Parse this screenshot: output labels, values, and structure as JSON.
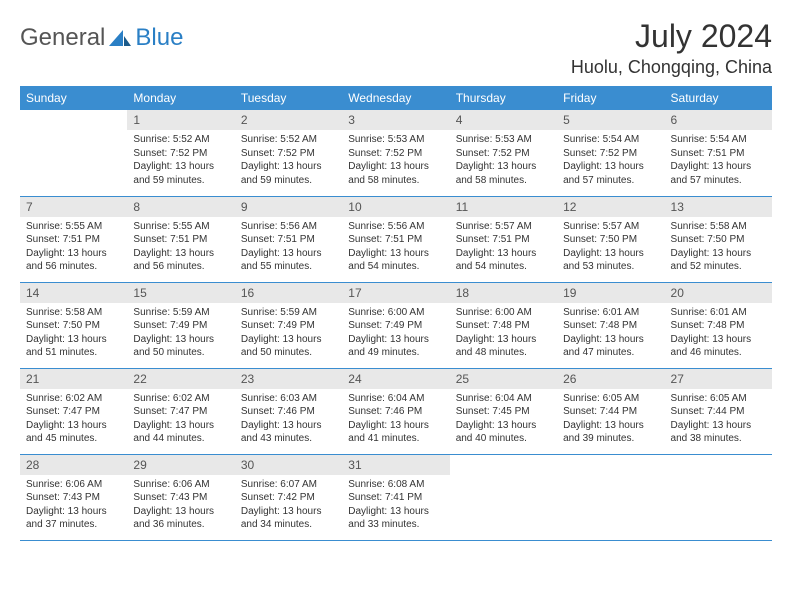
{
  "logo": {
    "text1": "General",
    "text2": "Blue"
  },
  "title": "July 2024",
  "location": "Huolu, Chongqing, China",
  "colors": {
    "header_bg": "#3a8dd0",
    "header_text": "#ffffff",
    "daynum_bg": "#e8e8e8",
    "border": "#3a8dd0",
    "logo_accent": "#2a7fc5"
  },
  "daynames": [
    "Sunday",
    "Monday",
    "Tuesday",
    "Wednesday",
    "Thursday",
    "Friday",
    "Saturday"
  ],
  "weeks": [
    [
      null,
      {
        "d": "1",
        "sr": "5:52 AM",
        "ss": "7:52 PM",
        "dl": "13 hours and 59 minutes."
      },
      {
        "d": "2",
        "sr": "5:52 AM",
        "ss": "7:52 PM",
        "dl": "13 hours and 59 minutes."
      },
      {
        "d": "3",
        "sr": "5:53 AM",
        "ss": "7:52 PM",
        "dl": "13 hours and 58 minutes."
      },
      {
        "d": "4",
        "sr": "5:53 AM",
        "ss": "7:52 PM",
        "dl": "13 hours and 58 minutes."
      },
      {
        "d": "5",
        "sr": "5:54 AM",
        "ss": "7:52 PM",
        "dl": "13 hours and 57 minutes."
      },
      {
        "d": "6",
        "sr": "5:54 AM",
        "ss": "7:51 PM",
        "dl": "13 hours and 57 minutes."
      }
    ],
    [
      {
        "d": "7",
        "sr": "5:55 AM",
        "ss": "7:51 PM",
        "dl": "13 hours and 56 minutes."
      },
      {
        "d": "8",
        "sr": "5:55 AM",
        "ss": "7:51 PM",
        "dl": "13 hours and 56 minutes."
      },
      {
        "d": "9",
        "sr": "5:56 AM",
        "ss": "7:51 PM",
        "dl": "13 hours and 55 minutes."
      },
      {
        "d": "10",
        "sr": "5:56 AM",
        "ss": "7:51 PM",
        "dl": "13 hours and 54 minutes."
      },
      {
        "d": "11",
        "sr": "5:57 AM",
        "ss": "7:51 PM",
        "dl": "13 hours and 54 minutes."
      },
      {
        "d": "12",
        "sr": "5:57 AM",
        "ss": "7:50 PM",
        "dl": "13 hours and 53 minutes."
      },
      {
        "d": "13",
        "sr": "5:58 AM",
        "ss": "7:50 PM",
        "dl": "13 hours and 52 minutes."
      }
    ],
    [
      {
        "d": "14",
        "sr": "5:58 AM",
        "ss": "7:50 PM",
        "dl": "13 hours and 51 minutes."
      },
      {
        "d": "15",
        "sr": "5:59 AM",
        "ss": "7:49 PM",
        "dl": "13 hours and 50 minutes."
      },
      {
        "d": "16",
        "sr": "5:59 AM",
        "ss": "7:49 PM",
        "dl": "13 hours and 50 minutes."
      },
      {
        "d": "17",
        "sr": "6:00 AM",
        "ss": "7:49 PM",
        "dl": "13 hours and 49 minutes."
      },
      {
        "d": "18",
        "sr": "6:00 AM",
        "ss": "7:48 PM",
        "dl": "13 hours and 48 minutes."
      },
      {
        "d": "19",
        "sr": "6:01 AM",
        "ss": "7:48 PM",
        "dl": "13 hours and 47 minutes."
      },
      {
        "d": "20",
        "sr": "6:01 AM",
        "ss": "7:48 PM",
        "dl": "13 hours and 46 minutes."
      }
    ],
    [
      {
        "d": "21",
        "sr": "6:02 AM",
        "ss": "7:47 PM",
        "dl": "13 hours and 45 minutes."
      },
      {
        "d": "22",
        "sr": "6:02 AM",
        "ss": "7:47 PM",
        "dl": "13 hours and 44 minutes."
      },
      {
        "d": "23",
        "sr": "6:03 AM",
        "ss": "7:46 PM",
        "dl": "13 hours and 43 minutes."
      },
      {
        "d": "24",
        "sr": "6:04 AM",
        "ss": "7:46 PM",
        "dl": "13 hours and 41 minutes."
      },
      {
        "d": "25",
        "sr": "6:04 AM",
        "ss": "7:45 PM",
        "dl": "13 hours and 40 minutes."
      },
      {
        "d": "26",
        "sr": "6:05 AM",
        "ss": "7:44 PM",
        "dl": "13 hours and 39 minutes."
      },
      {
        "d": "27",
        "sr": "6:05 AM",
        "ss": "7:44 PM",
        "dl": "13 hours and 38 minutes."
      }
    ],
    [
      {
        "d": "28",
        "sr": "6:06 AM",
        "ss": "7:43 PM",
        "dl": "13 hours and 37 minutes."
      },
      {
        "d": "29",
        "sr": "6:06 AM",
        "ss": "7:43 PM",
        "dl": "13 hours and 36 minutes."
      },
      {
        "d": "30",
        "sr": "6:07 AM",
        "ss": "7:42 PM",
        "dl": "13 hours and 34 minutes."
      },
      {
        "d": "31",
        "sr": "6:08 AM",
        "ss": "7:41 PM",
        "dl": "13 hours and 33 minutes."
      },
      null,
      null,
      null
    ]
  ],
  "labels": {
    "sunrise": "Sunrise: ",
    "sunset": "Sunset: ",
    "daylight": "Daylight: "
  }
}
